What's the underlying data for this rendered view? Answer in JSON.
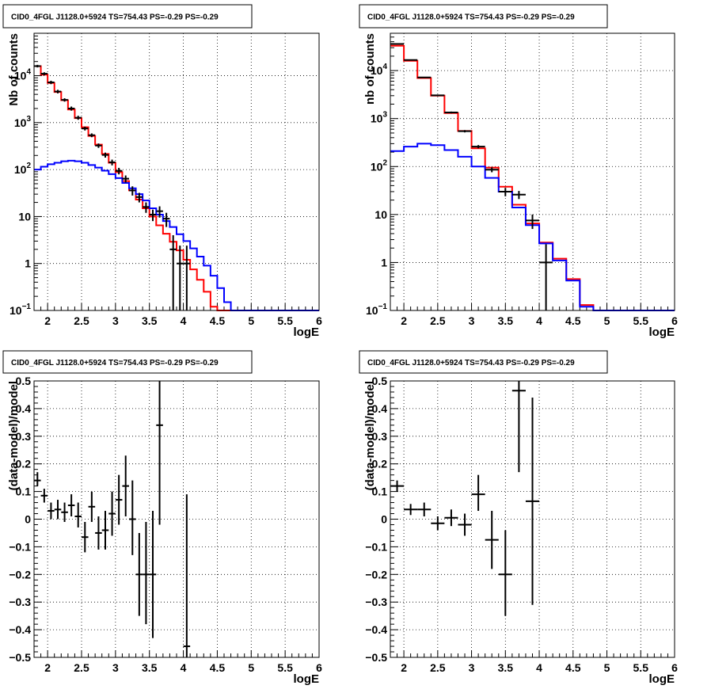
{
  "chart_data": [
    {
      "id": "top-left",
      "type": "line",
      "title": "CID0_4FGL J1128.0+5924 TS=754.43 PS=-0.29 PS=-0.29",
      "xlabel": "logE",
      "ylabel": "Nb of counts",
      "xlim": [
        1.8,
        6.0
      ],
      "ylim": [
        0.1,
        80000
      ],
      "yscale": "log",
      "grid": true,
      "xticks": [
        "2",
        "2.5",
        "3",
        "3.5",
        "4",
        "4.5",
        "5",
        "5.5",
        "6"
      ],
      "yticks": [
        {
          "v": 0.1,
          "label": "10",
          "sup": "−1"
        },
        {
          "v": 1,
          "label": "1",
          "sup": ""
        },
        {
          "v": 10,
          "label": "10",
          "sup": ""
        },
        {
          "v": 100,
          "label": "10",
          "sup": "2"
        },
        {
          "v": 1000,
          "label": "10",
          "sup": "3"
        },
        {
          "v": 10000,
          "label": "10",
          "sup": "4"
        }
      ],
      "bin_edges": [
        1.8,
        1.9,
        2.0,
        2.1,
        2.2,
        2.3,
        2.4,
        2.5,
        2.6,
        2.7,
        2.8,
        2.9,
        3.0,
        3.1,
        3.2,
        3.3,
        3.4,
        3.5,
        3.6,
        3.7,
        3.8,
        3.9,
        4.0,
        4.1,
        4.2,
        4.3,
        4.4,
        4.5,
        4.6,
        4.7,
        4.8,
        4.9,
        5.0,
        5.1,
        5.2,
        5.3,
        5.4,
        5.5,
        5.6,
        5.7,
        5.8,
        5.9,
        6.0
      ],
      "series": [
        {
          "color": "#ff0000",
          "values": [
            16000,
            10500,
            7000,
            4500,
            3000,
            1900,
            1250,
            800,
            520,
            340,
            215,
            140,
            88,
            57,
            36,
            23,
            15,
            10,
            6.5,
            4.3,
            2.9,
            1.9,
            1.2,
            0.75,
            0.45,
            0.25,
            0.12,
            0.1,
            0.1,
            0.1,
            0.1,
            0.1,
            0.1,
            0.1,
            0.1,
            0.1,
            0.1,
            0.1,
            0.1,
            0.1,
            0.1,
            0.1
          ]
        },
        {
          "color": "#0000ff",
          "values": [
            100,
            115,
            130,
            140,
            150,
            155,
            150,
            140,
            125,
            110,
            95,
            80,
            66,
            52,
            40,
            30,
            22,
            15,
            11,
            8,
            6,
            4.2,
            3,
            2.1,
            1.4,
            0.9,
            0.55,
            0.3,
            0.15,
            0.1,
            0.1,
            0.1,
            0.1,
            0.1,
            0.1,
            0.1,
            0.1,
            0.1,
            0.1,
            0.1,
            0.1,
            0.1
          ]
        }
      ],
      "points": [
        {
          "x": 1.85,
          "y": 16000,
          "lo": 15000,
          "hi": 17000,
          "xerr": 0.05
        },
        {
          "x": 1.95,
          "y": 11000,
          "lo": 10200,
          "hi": 11800,
          "xerr": 0.05
        },
        {
          "x": 2.05,
          "y": 7200,
          "lo": 6600,
          "hi": 7800,
          "xerr": 0.05
        },
        {
          "x": 2.15,
          "y": 4600,
          "lo": 4200,
          "hi": 5000,
          "xerr": 0.05
        },
        {
          "x": 2.25,
          "y": 3050,
          "lo": 2800,
          "hi": 3300,
          "xerr": 0.05
        },
        {
          "x": 2.35,
          "y": 2000,
          "lo": 1800,
          "hi": 2200,
          "xerr": 0.05
        },
        {
          "x": 2.45,
          "y": 1270,
          "lo": 1150,
          "hi": 1400,
          "xerr": 0.05
        },
        {
          "x": 2.55,
          "y": 750,
          "lo": 680,
          "hi": 820,
          "xerr": 0.05
        },
        {
          "x": 2.65,
          "y": 540,
          "lo": 490,
          "hi": 590,
          "xerr": 0.05
        },
        {
          "x": 2.75,
          "y": 325,
          "lo": 290,
          "hi": 360,
          "xerr": 0.05
        },
        {
          "x": 2.85,
          "y": 205,
          "lo": 180,
          "hi": 230,
          "xerr": 0.05
        },
        {
          "x": 2.95,
          "y": 143,
          "lo": 123,
          "hi": 163,
          "xerr": 0.05
        },
        {
          "x": 3.05,
          "y": 94,
          "lo": 79,
          "hi": 109,
          "xerr": 0.05
        },
        {
          "x": 3.15,
          "y": 64,
          "lo": 53,
          "hi": 75,
          "xerr": 0.05
        },
        {
          "x": 3.25,
          "y": 36,
          "lo": 28,
          "hi": 44,
          "xerr": 0.05
        },
        {
          "x": 3.35,
          "y": 26,
          "lo": 20,
          "hi": 32,
          "xerr": 0.05
        },
        {
          "x": 3.45,
          "y": 16,
          "lo": 12,
          "hi": 20,
          "xerr": 0.05
        },
        {
          "x": 3.55,
          "y": 11,
          "lo": 8,
          "hi": 14,
          "xerr": 0.05
        },
        {
          "x": 3.65,
          "y": 13,
          "lo": 9.5,
          "hi": 16.5,
          "xerr": 0.05
        },
        {
          "x": 3.75,
          "y": 9,
          "lo": 6,
          "hi": 12,
          "xerr": 0.05
        },
        {
          "x": 3.85,
          "y": 2,
          "lo": 0.1,
          "hi": 4,
          "xerr": 0.05
        },
        {
          "x": 3.95,
          "y": 1,
          "lo": 0.1,
          "hi": 2.4,
          "xerr": 0.05
        },
        {
          "x": 4.05,
          "y": 1,
          "lo": 0.1,
          "hi": 2.4,
          "xerr": 0.05
        }
      ]
    },
    {
      "id": "top-right",
      "type": "line",
      "title": "CID0_4FGL J1128.0+5924 TS=754.43 PS=-0.29 PS=-0.29",
      "xlabel": "logE",
      "ylabel": "nb of counts",
      "xlim": [
        1.8,
        6.0
      ],
      "ylim": [
        0.1,
        60000
      ],
      "yscale": "log",
      "grid": true,
      "xticks": [
        "2",
        "2.5",
        "3",
        "3.5",
        "4",
        "4.5",
        "5",
        "5.5",
        "6"
      ],
      "yticks": [
        {
          "v": 0.1,
          "label": "10",
          "sup": "−1"
        },
        {
          "v": 1,
          "label": "1",
          "sup": ""
        },
        {
          "v": 10,
          "label": "10",
          "sup": ""
        },
        {
          "v": 100,
          "label": "10",
          "sup": "2"
        },
        {
          "v": 1000,
          "label": "10",
          "sup": "3"
        },
        {
          "v": 10000,
          "label": "10",
          "sup": "4"
        }
      ],
      "bin_edges": [
        1.8,
        2.0,
        2.2,
        2.4,
        2.6,
        2.8,
        3.0,
        3.2,
        3.4,
        3.6,
        3.8,
        4.0,
        4.2,
        4.4,
        4.6,
        4.8,
        5.0,
        5.2,
        5.4,
        5.6,
        5.8,
        6.0
      ],
      "series": [
        {
          "color": "#ff0000",
          "values": [
            33000,
            16000,
            7000,
            3000,
            1300,
            550,
            240,
            95,
            38,
            16,
            6.5,
            2.6,
            1.2,
            0.45,
            0.13,
            0.1,
            0.1,
            0.1,
            0.1,
            0.1,
            0.1
          ]
        },
        {
          "color": "#0000ff",
          "values": [
            210,
            260,
            300,
            280,
            220,
            160,
            100,
            58,
            30,
            14,
            6,
            2.5,
            1.1,
            0.42,
            0.12,
            0.1,
            0.1,
            0.1,
            0.1,
            0.1,
            0.1
          ]
        }
      ],
      "points": [
        {
          "x": 1.9,
          "y": 36000,
          "lo": 35000,
          "hi": 37000,
          "xerr": 0.1
        },
        {
          "x": 2.1,
          "y": 16600,
          "lo": 16200,
          "hi": 17000,
          "xerr": 0.1
        },
        {
          "x": 2.3,
          "y": 7200,
          "lo": 7000,
          "hi": 7400,
          "xerr": 0.1
        },
        {
          "x": 2.5,
          "y": 3050,
          "lo": 2950,
          "hi": 3150,
          "xerr": 0.1
        },
        {
          "x": 2.7,
          "y": 1340,
          "lo": 1280,
          "hi": 1400,
          "xerr": 0.1
        },
        {
          "x": 2.9,
          "y": 545,
          "lo": 515,
          "hi": 575,
          "xerr": 0.1
        },
        {
          "x": 3.1,
          "y": 260,
          "lo": 240,
          "hi": 280,
          "xerr": 0.1
        },
        {
          "x": 3.3,
          "y": 86,
          "lo": 76,
          "hi": 96,
          "xerr": 0.1
        },
        {
          "x": 3.5,
          "y": 30,
          "lo": 24,
          "hi": 36,
          "xerr": 0.1
        },
        {
          "x": 3.7,
          "y": 26,
          "lo": 21,
          "hi": 31,
          "xerr": 0.1
        },
        {
          "x": 3.9,
          "y": 7.5,
          "lo": 5,
          "hi": 10,
          "xerr": 0.1
        },
        {
          "x": 4.1,
          "y": 1,
          "lo": 0.1,
          "hi": 2.4,
          "xerr": 0.1
        }
      ]
    },
    {
      "id": "bottom-left",
      "type": "scatter",
      "title": "CID0_4FGL J1128.0+5924 TS=754.43 PS=-0.29 PS=-0.29",
      "xlabel": "logE",
      "ylabel": "(data-model)/model",
      "xlim": [
        1.8,
        6.0
      ],
      "ylim": [
        -0.5,
        0.5
      ],
      "yscale": "linear",
      "grid": true,
      "xticks": [
        "2",
        "2.5",
        "3",
        "3.5",
        "4",
        "4.5",
        "5",
        "5.5",
        "6"
      ],
      "yticks": [
        {
          "v": -0.5,
          "label": "−0.5",
          "sup": ""
        },
        {
          "v": -0.4,
          "label": "−0.4",
          "sup": ""
        },
        {
          "v": -0.3,
          "label": "−0.3",
          "sup": ""
        },
        {
          "v": -0.2,
          "label": "−0.2",
          "sup": ""
        },
        {
          "v": -0.1,
          "label": "−0.1",
          "sup": ""
        },
        {
          "v": 0,
          "label": "0",
          "sup": ""
        },
        {
          "v": 0.1,
          "label": "0.1",
          "sup": ""
        },
        {
          "v": 0.2,
          "label": "0.2",
          "sup": ""
        },
        {
          "v": 0.3,
          "label": "0.3",
          "sup": ""
        },
        {
          "v": 0.4,
          "label": "0.4",
          "sup": ""
        },
        {
          "v": 0.5,
          "label": "0.5",
          "sup": ""
        }
      ],
      "points": [
        {
          "x": 1.85,
          "y": 0.14,
          "lo": 0.12,
          "hi": 0.17,
          "xerr": 0.05
        },
        {
          "x": 1.95,
          "y": 0.085,
          "lo": 0.06,
          "hi": 0.11,
          "xerr": 0.05
        },
        {
          "x": 2.05,
          "y": 0.03,
          "lo": 0.0,
          "hi": 0.06,
          "xerr": 0.05
        },
        {
          "x": 2.15,
          "y": 0.035,
          "lo": 0.0,
          "hi": 0.07,
          "xerr": 0.05
        },
        {
          "x": 2.25,
          "y": 0.025,
          "lo": -0.01,
          "hi": 0.06,
          "xerr": 0.05
        },
        {
          "x": 2.35,
          "y": 0.05,
          "lo": 0.01,
          "hi": 0.09,
          "xerr": 0.05
        },
        {
          "x": 2.45,
          "y": 0.01,
          "lo": -0.03,
          "hi": 0.06,
          "xerr": 0.05
        },
        {
          "x": 2.55,
          "y": -0.065,
          "lo": -0.12,
          "hi": -0.01,
          "xerr": 0.05
        },
        {
          "x": 2.65,
          "y": 0.045,
          "lo": -0.01,
          "hi": 0.1,
          "xerr": 0.05
        },
        {
          "x": 2.75,
          "y": -0.05,
          "lo": -0.11,
          "hi": 0.01,
          "xerr": 0.05
        },
        {
          "x": 2.85,
          "y": -0.04,
          "lo": -0.11,
          "hi": 0.03,
          "xerr": 0.05
        },
        {
          "x": 2.95,
          "y": 0.02,
          "lo": -0.06,
          "hi": 0.1,
          "xerr": 0.05
        },
        {
          "x": 3.05,
          "y": 0.07,
          "lo": -0.02,
          "hi": 0.16,
          "xerr": 0.05
        },
        {
          "x": 3.15,
          "y": 0.12,
          "lo": 0.01,
          "hi": 0.23,
          "xerr": 0.05
        },
        {
          "x": 3.25,
          "y": 0.0,
          "lo": -0.13,
          "hi": 0.14,
          "xerr": 0.05
        },
        {
          "x": 3.35,
          "y": -0.2,
          "lo": -0.35,
          "hi": -0.05,
          "xerr": 0.05
        },
        {
          "x": 3.45,
          "y": -0.2,
          "lo": -0.38,
          "hi": -0.01,
          "xerr": 0.05
        },
        {
          "x": 3.55,
          "y": -0.2,
          "lo": -0.43,
          "hi": 0.03,
          "xerr": 0.05
        },
        {
          "x": 3.65,
          "y": 0.34,
          "lo": -0.02,
          "hi": 0.5,
          "xerr": 0.05
        },
        {
          "x": 4.05,
          "y": -0.46,
          "lo": -0.5,
          "hi": 0.09,
          "xerr": 0.05
        }
      ]
    },
    {
      "id": "bottom-right",
      "type": "scatter",
      "title": "CID0_4FGL J1128.0+5924 TS=754.43 PS=-0.29 PS=-0.29",
      "xlabel": "logE",
      "ylabel": "(data-model)/model",
      "xlim": [
        1.8,
        6.0
      ],
      "ylim": [
        -0.5,
        0.5
      ],
      "yscale": "linear",
      "grid": true,
      "xticks": [
        "2",
        "2.5",
        "3",
        "3.5",
        "4",
        "4.5",
        "5",
        "5.5",
        "6"
      ],
      "yticks": [
        {
          "v": -0.5,
          "label": "−0.5",
          "sup": ""
        },
        {
          "v": -0.4,
          "label": "−0.4",
          "sup": ""
        },
        {
          "v": -0.3,
          "label": "−0.3",
          "sup": ""
        },
        {
          "v": -0.2,
          "label": "−0.2",
          "sup": ""
        },
        {
          "v": -0.1,
          "label": "−0.1",
          "sup": ""
        },
        {
          "v": 0,
          "label": "0",
          "sup": ""
        },
        {
          "v": 0.1,
          "label": "0.1",
          "sup": ""
        },
        {
          "v": 0.2,
          "label": "0.2",
          "sup": ""
        },
        {
          "v": 0.3,
          "label": "0.3",
          "sup": ""
        },
        {
          "v": 0.4,
          "label": "0.4",
          "sup": ""
        },
        {
          "v": 0.5,
          "label": "0.5",
          "sup": ""
        }
      ],
      "points": [
        {
          "x": 1.9,
          "y": 0.12,
          "lo": 0.1,
          "hi": 0.14,
          "xerr": 0.1
        },
        {
          "x": 2.1,
          "y": 0.035,
          "lo": 0.015,
          "hi": 0.055,
          "xerr": 0.1
        },
        {
          "x": 2.3,
          "y": 0.035,
          "lo": 0.01,
          "hi": 0.06,
          "xerr": 0.1
        },
        {
          "x": 2.5,
          "y": -0.015,
          "lo": -0.04,
          "hi": 0.01,
          "xerr": 0.1
        },
        {
          "x": 2.7,
          "y": 0.005,
          "lo": -0.025,
          "hi": 0.035,
          "xerr": 0.1
        },
        {
          "x": 2.9,
          "y": -0.02,
          "lo": -0.06,
          "hi": 0.02,
          "xerr": 0.1
        },
        {
          "x": 3.1,
          "y": 0.09,
          "lo": 0.03,
          "hi": 0.16,
          "xerr": 0.1
        },
        {
          "x": 3.3,
          "y": -0.075,
          "lo": -0.18,
          "hi": 0.03,
          "xerr": 0.1
        },
        {
          "x": 3.5,
          "y": -0.2,
          "lo": -0.35,
          "hi": -0.04,
          "xerr": 0.1
        },
        {
          "x": 3.7,
          "y": 0.465,
          "lo": 0.17,
          "hi": 0.5,
          "xerr": 0.1
        },
        {
          "x": 3.9,
          "y": 0.065,
          "lo": -0.31,
          "hi": 0.44,
          "xerr": 0.1
        }
      ]
    }
  ]
}
